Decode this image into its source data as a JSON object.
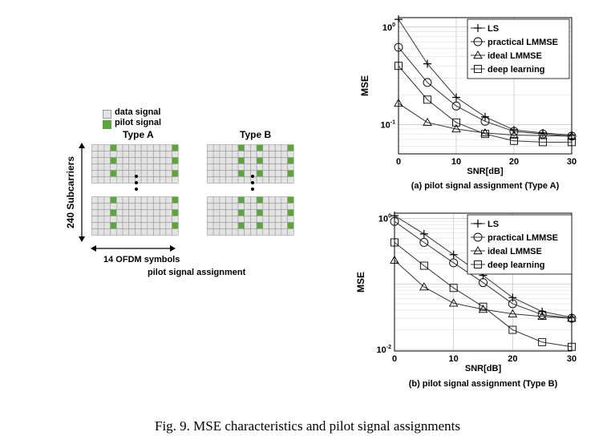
{
  "caption": "Fig. 9.   MSE characteristics and pilot signal assignments",
  "left_panel": {
    "legend": {
      "data_signal": "data signal",
      "pilot_signal": "pilot signal"
    },
    "type_a": "Type A",
    "type_b": "Type B",
    "y_label": "240 Subcarriers",
    "x_label": "14 OFDM symbols",
    "title": "pilot signal assignment",
    "colors": {
      "data": "#e3e3e3",
      "pilot": "#5aa63a",
      "grid_line": "#9a9a9a"
    }
  },
  "chart_data": [
    {
      "type": "line",
      "title": "",
      "subtitle": "(a) pilot signal assignment (Type A)",
      "xlabel": "SNR[dB]",
      "ylabel": "MSE",
      "xlim": [
        0,
        30
      ],
      "ylim": [
        0.05,
        1.25
      ],
      "yscale": "log",
      "x_ticks": [
        0,
        10,
        20,
        30
      ],
      "y_tick_labels": [
        {
          "value": 1,
          "base": "10",
          "exp": "0"
        },
        {
          "value": 0.1,
          "base": "10",
          "exp": "-1"
        }
      ],
      "grid": true,
      "legend_position": "top-right",
      "x": [
        0,
        5,
        10,
        15,
        20,
        25,
        30
      ],
      "series": [
        {
          "name": "LS",
          "marker": "plus",
          "values": [
            1.2,
            0.42,
            0.19,
            0.12,
            0.088,
            0.082,
            0.078
          ]
        },
        {
          "name": "practical LMMSE",
          "marker": "circle",
          "values": [
            0.62,
            0.27,
            0.155,
            0.108,
            0.085,
            0.08,
            0.076
          ]
        },
        {
          "name": "ideal LMMSE",
          "marker": "triangle",
          "values": [
            0.165,
            0.105,
            0.09,
            0.082,
            0.078,
            0.077,
            0.076
          ]
        },
        {
          "name": "deep learning",
          "marker": "square",
          "values": [
            0.4,
            0.18,
            0.105,
            0.08,
            0.068,
            0.066,
            0.066
          ]
        }
      ]
    },
    {
      "type": "line",
      "title": "",
      "subtitle": "(b) pilot signal assignment (Type B)",
      "xlabel": "SNR[dB]",
      "ylabel": "MSE",
      "xlim": [
        0,
        30
      ],
      "ylim": [
        0.0095,
        1.2
      ],
      "yscale": "log",
      "x_ticks": [
        0,
        10,
        20,
        30
      ],
      "y_tick_labels": [
        {
          "value": 1,
          "base": "10",
          "exp": "0"
        },
        {
          "value": 0.01,
          "base": "10",
          "exp": "-2"
        }
      ],
      "grid": true,
      "legend_position": "top-right",
      "x": [
        0,
        5,
        10,
        15,
        20,
        25,
        30
      ],
      "series": [
        {
          "name": "LS",
          "marker": "plus",
          "values": [
            1.1,
            0.58,
            0.28,
            0.135,
            0.062,
            0.038,
            0.031
          ]
        },
        {
          "name": "practical LMMSE",
          "marker": "circle",
          "values": [
            0.9,
            0.43,
            0.21,
            0.105,
            0.05,
            0.034,
            0.03
          ]
        },
        {
          "name": "ideal LMMSE",
          "marker": "triangle",
          "values": [
            0.23,
            0.09,
            0.051,
            0.041,
            0.035,
            0.032,
            0.03
          ]
        },
        {
          "name": "deep learning",
          "marker": "square",
          "values": [
            0.43,
            0.19,
            0.087,
            0.045,
            0.02,
            0.013,
            0.011
          ]
        }
      ]
    }
  ]
}
